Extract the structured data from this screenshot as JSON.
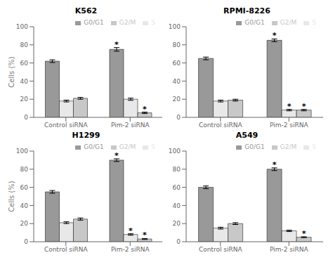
{
  "chart_data": [
    {
      "type": "bar",
      "title": "K562",
      "categories": [
        "Control siRNA",
        "Pim-2 siRNA"
      ],
      "ylabel": "Cells (%)",
      "series": [
        {
          "name": "G0/G1",
          "color": "#999999",
          "values": [
            62,
            75
          ],
          "errors": [
            1.5,
            2.0
          ]
        },
        {
          "name": "S",
          "color": "#e8e8e8",
          "values": [
            18,
            20
          ],
          "errors": [
            1.0,
            1.2
          ]
        },
        {
          "name": "G2/M",
          "color": "#c8c8c8",
          "values": [
            21,
            5
          ],
          "errors": [
            1.0,
            0.8
          ]
        }
      ],
      "annotations": [
        {
          "text": "*",
          "series": "G0/G1",
          "category": "Pim-2 siRNA"
        },
        {
          "text": "*",
          "series": "G2/M",
          "category": "Pim-2 siRNA"
        }
      ],
      "ylim": [
        0,
        100
      ],
      "yticks": [
        0,
        20,
        40,
        60,
        80,
        100
      ],
      "legend": "upper right",
      "grid": false
    },
    {
      "type": "bar",
      "title": "RPMI-8226",
      "categories": [
        "Control siRNA",
        "Pim-2 siRNA"
      ],
      "series": [
        {
          "name": "G0/G1",
          "color": "#999999",
          "values": [
            65,
            85
          ],
          "errors": [
            1.5,
            1.5
          ]
        },
        {
          "name": "S",
          "color": "#e8e8e8",
          "values": [
            18,
            8
          ],
          "errors": [
            1.0,
            0.8
          ]
        },
        {
          "name": "G2/M",
          "color": "#c8c8c8",
          "values": [
            19,
            8
          ],
          "errors": [
            1.0,
            0.8
          ]
        }
      ],
      "annotations": [
        {
          "text": "*",
          "series": "G0/G1",
          "category": "Pim-2 siRNA"
        },
        {
          "text": "*",
          "series": "S",
          "category": "Pim-2 siRNA"
        },
        {
          "text": "*",
          "series": "G2/M",
          "category": "Pim-2 siRNA"
        }
      ],
      "ylim": [
        0,
        100
      ],
      "yticks": [
        0,
        20,
        40,
        60,
        80,
        100
      ],
      "legend": "upper right",
      "grid": false
    },
    {
      "type": "bar",
      "title": "H1299",
      "categories": [
        "Control siRNA",
        "Pim-2 siRNA"
      ],
      "ylabel": "Cells (%)",
      "series": [
        {
          "name": "G0/G1",
          "color": "#999999",
          "values": [
            55,
            90
          ],
          "errors": [
            1.5,
            1.5
          ]
        },
        {
          "name": "S",
          "color": "#e8e8e8",
          "values": [
            21,
            8
          ],
          "errors": [
            1.0,
            0.8
          ]
        },
        {
          "name": "G2/M",
          "color": "#c8c8c8",
          "values": [
            25,
            3
          ],
          "errors": [
            1.2,
            0.5
          ]
        }
      ],
      "annotations": [
        {
          "text": "*",
          "series": "G0/G1",
          "category": "Pim-2 siRNA"
        },
        {
          "text": "*",
          "series": "S",
          "category": "Pim-2 siRNA"
        },
        {
          "text": "*",
          "series": "G2/M",
          "category": "Pim-2 siRNA"
        }
      ],
      "ylim": [
        0,
        100
      ],
      "yticks": [
        0,
        20,
        40,
        60,
        80,
        100
      ],
      "legend": "upper right",
      "grid": false
    },
    {
      "type": "bar",
      "title": "A549",
      "categories": [
        "Control siRNA",
        "Pim-2 siRNA"
      ],
      "series": [
        {
          "name": "G0/G1",
          "color": "#999999",
          "values": [
            60,
            80
          ],
          "errors": [
            1.5,
            1.5
          ]
        },
        {
          "name": "S",
          "color": "#e8e8e8",
          "values": [
            15,
            12
          ],
          "errors": [
            1.0,
            0.8
          ]
        },
        {
          "name": "G2/M",
          "color": "#c8c8c8",
          "values": [
            20,
            5
          ],
          "errors": [
            1.0,
            0.5
          ]
        }
      ],
      "annotations": [
        {
          "text": "*",
          "series": "G0/G1",
          "category": "Pim-2 siRNA"
        },
        {
          "text": "*",
          "series": "G2/M",
          "category": "Pim-2 siRNA"
        }
      ],
      "ylim": [
        0,
        100
      ],
      "yticks": [
        0,
        20,
        40,
        60,
        80,
        100
      ],
      "legend": "upper right",
      "grid": false
    }
  ]
}
